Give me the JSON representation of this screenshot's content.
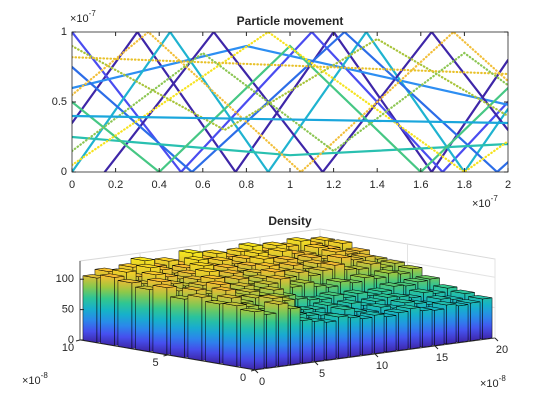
{
  "chart_data": [
    {
      "type": "line",
      "title": "Particle movement",
      "xlim": [
        0,
        2
      ],
      "ylim": [
        0,
        1
      ],
      "xticks": [
        0,
        0.2,
        0.4,
        0.6,
        0.8,
        1,
        1.2,
        1.4,
        1.6,
        1.8,
        2
      ],
      "yticks": [
        0,
        0.5,
        1
      ],
      "xexponent": {
        "base": "×10",
        "power": "-7"
      },
      "yexponent": {
        "base": "×10",
        "power": "-7"
      },
      "series": [
        {
          "color": "#3e26a8",
          "style": "solid",
          "x": [
            0,
            0.3,
            0.75,
            1.2,
            1.65,
            2
          ],
          "values": [
            0.35,
            1,
            0,
            1,
            0,
            0.8
          ]
        },
        {
          "color": "#4a4cf0",
          "style": "solid",
          "x": [
            0,
            0.5,
            1.1,
            1.7,
            2
          ],
          "values": [
            1,
            0,
            1,
            0,
            0.5
          ]
        },
        {
          "color": "#2d8ef2",
          "style": "solid",
          "x": [
            0,
            0.8,
            1.6,
            2
          ],
          "values": [
            0.6,
            0.9,
            0.62,
            0.48
          ]
        },
        {
          "color": "#1fb3d0",
          "style": "solid",
          "x": [
            0,
            0.45,
            0.9,
            1.35,
            1.8,
            2
          ],
          "values": [
            0.0,
            1,
            0,
            1,
            0,
            0.45
          ]
        },
        {
          "color": "#3e26a8",
          "style": "solid",
          "x": [
            0.15,
            0.65,
            1.15,
            1.65,
            2
          ],
          "values": [
            0,
            1,
            0,
            1,
            0.3
          ]
        },
        {
          "color": "#2c6de8",
          "style": "solid",
          "x": [
            0,
            0.55,
            1.25,
            1.95,
            2
          ],
          "values": [
            0.75,
            0,
            1,
            0,
            0.07
          ]
        },
        {
          "color": "#29c0b0",
          "style": "solid",
          "x": [
            0,
            1,
            2
          ],
          "values": [
            0.25,
            0.12,
            0.2
          ]
        },
        {
          "color": "#46c784",
          "style": "solid",
          "x": [
            0,
            0.4,
            1.0,
            1.6,
            2
          ],
          "values": [
            0.5,
            0.0,
            0.9,
            0.0,
            0.6
          ]
        },
        {
          "color": "#a8c43a",
          "style": "dotted",
          "x": [
            0,
            0.7,
            1.4,
            2
          ],
          "values": [
            0.9,
            0.3,
            0.95,
            0.4
          ]
        },
        {
          "color": "#f2bf3a",
          "style": "dotted",
          "x": [
            0,
            0.35,
            1.05,
            1.75,
            2
          ],
          "values": [
            0.55,
            1,
            0,
            1,
            0.65
          ]
        },
        {
          "color": "#f6e31f",
          "style": "dotted",
          "x": [
            0,
            0.9,
            1.8,
            2
          ],
          "values": [
            0.05,
            1,
            0,
            0.22
          ]
        },
        {
          "color": "#e8c12a",
          "style": "dotted",
          "x": [
            0,
            2
          ],
          "values": [
            0.82,
            0.7
          ]
        },
        {
          "color": "#8cc653",
          "style": "dotted",
          "x": [
            0,
            0.6,
            1.2,
            1.8,
            2
          ],
          "values": [
            0.15,
            0.85,
            0.15,
            0.85,
            0.62
          ]
        },
        {
          "color": "#1aa6dc",
          "style": "solid",
          "x": [
            0,
            2
          ],
          "values": [
            0.4,
            0.35
          ]
        }
      ]
    },
    {
      "type": "bar3",
      "title": "Density",
      "xlim": [
        0,
        20
      ],
      "ylim": [
        0,
        10
      ],
      "zlim": [
        0,
        130
      ],
      "xticks": [
        0,
        5,
        10,
        15,
        20
      ],
      "yticks": [
        0,
        5,
        10
      ],
      "zticks": [
        0,
        50,
        100
      ],
      "xexponent": {
        "base": "×10",
        "power": "-8"
      },
      "yexponent": {
        "base": "×10",
        "power": "-8"
      },
      "grid": true,
      "colormap": [
        "#3e26a8",
        "#4650f0",
        "#288ceb",
        "#14b4c8",
        "#32c88c",
        "#a0c83c",
        "#fab932",
        "#f9fa14"
      ],
      "values": [
        [
          95,
          88,
          102,
          92,
          70,
          66,
          62,
          68,
          64,
          60,
          63,
          58,
          62,
          66,
          60,
          58,
          64,
          60,
          62,
          66
        ],
        [
          100,
          96,
          90,
          104,
          98,
          72,
          68,
          66,
          62,
          70,
          64,
          60,
          66,
          62,
          68,
          64,
          60,
          66,
          63,
          70
        ],
        [
          98,
          105,
          95,
          100,
          92,
          96,
          74,
          70,
          68,
          72,
          66,
          70,
          64,
          68,
          72,
          70,
          66,
          72,
          68,
          74
        ],
        [
          104,
          96,
          110,
          98,
          102,
          94,
          100,
          88,
          80,
          76,
          74,
          78,
          72,
          76,
          70,
          74,
          80,
          78,
          82,
          84
        ],
        [
          96,
          108,
          100,
          112,
          98,
          104,
          96,
          102,
          108,
          92,
          96,
          88,
          84,
          90,
          86,
          92,
          88,
          94,
          90,
          96
        ],
        [
          110,
          102,
          98,
          106,
          114,
          100,
          108,
          98,
          104,
          112,
          100,
          106,
          98,
          104,
          110,
          100,
          98,
          104,
          96,
          100
        ],
        [
          102,
          112,
          106,
          100,
          108,
          118,
          104,
          110,
          100,
          106,
          114,
          104,
          110,
          102,
          108,
          104,
          112,
          106,
          108,
          102
        ],
        [
          108,
          104,
          116,
          110,
          104,
          110,
          120,
          106,
          112,
          104,
          110,
          118,
          106,
          112,
          104,
          110,
          106,
          114,
          108,
          110
        ],
        [
          112,
          118,
          108,
          120,
          114,
          106,
          112,
          122,
          110,
          116,
          108,
          114,
          120,
          110,
          118,
          112,
          108,
          116,
          112,
          118
        ],
        [
          106,
          114,
          110,
          116,
          124,
          112,
          118,
          110,
          126,
          114,
          120,
          112,
          118,
          124,
          114,
          120,
          116,
          122,
          114,
          118
        ]
      ]
    }
  ]
}
